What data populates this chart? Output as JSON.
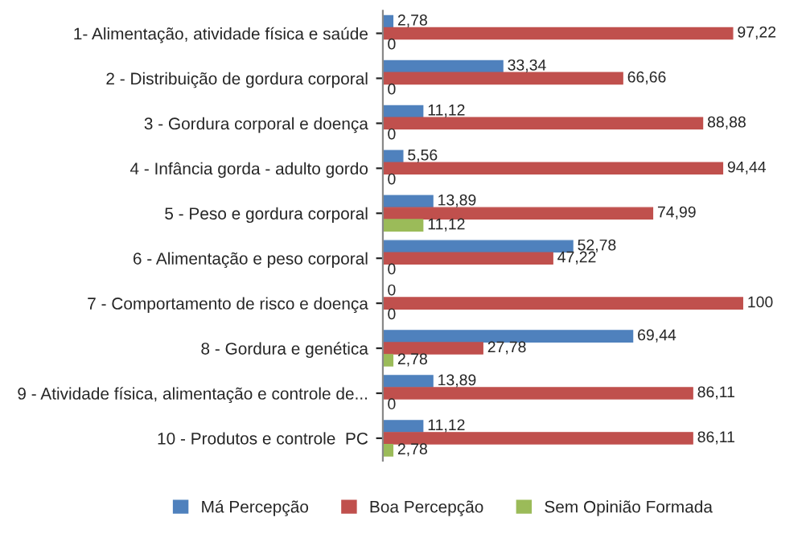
{
  "chart_data": {
    "type": "bar",
    "orientation": "horizontal",
    "categories": [
      "1- Alimentação, atividade física e saúde",
      "2 - Distribuição de gordura corporal",
      "3 - Gordura corporal e doença",
      "4 - Infância gorda - adulto gordo",
      "5 - Peso e gordura corporal",
      "6 - Alimentação e peso corporal",
      "7 - Comportamento de risco e doença",
      "8 - Gordura e genética",
      "9 - Atividade física, alimentação e controle de...",
      "10 - Produtos e controle  PC"
    ],
    "series": [
      {
        "name": "Má Percepção",
        "color": "#4f81bd",
        "values": [
          2.78,
          33.34,
          11.12,
          5.56,
          13.89,
          52.78,
          0,
          69.44,
          13.89,
          11.12
        ],
        "value_labels": [
          "2,78",
          "33,34",
          "11,12",
          "5,56",
          "13,89",
          "52,78",
          "0",
          "69,44",
          "13,89",
          "11,12"
        ]
      },
      {
        "name": "Boa Percepção",
        "color": "#c0504d",
        "values": [
          97.22,
          66.66,
          88.88,
          94.44,
          74.99,
          47.22,
          100,
          27.78,
          86.11,
          86.11
        ],
        "value_labels": [
          "97,22",
          "66,66",
          "88,88",
          "94,44",
          "74,99",
          "47,22",
          "100",
          "27,78",
          "86,11",
          "86,11"
        ]
      },
      {
        "name": "Sem Opinião Formada",
        "color": "#9bbb59",
        "values": [
          0,
          0,
          0,
          0,
          11.12,
          0,
          0,
          2.78,
          0,
          2.78
        ],
        "value_labels": [
          "0",
          "0",
          "0",
          "0",
          "11,12",
          "0",
          "0",
          "2,78",
          "0",
          "2,78"
        ]
      }
    ],
    "tick_labels": "y",
    "legend": "bottom",
    "grid": false
  }
}
